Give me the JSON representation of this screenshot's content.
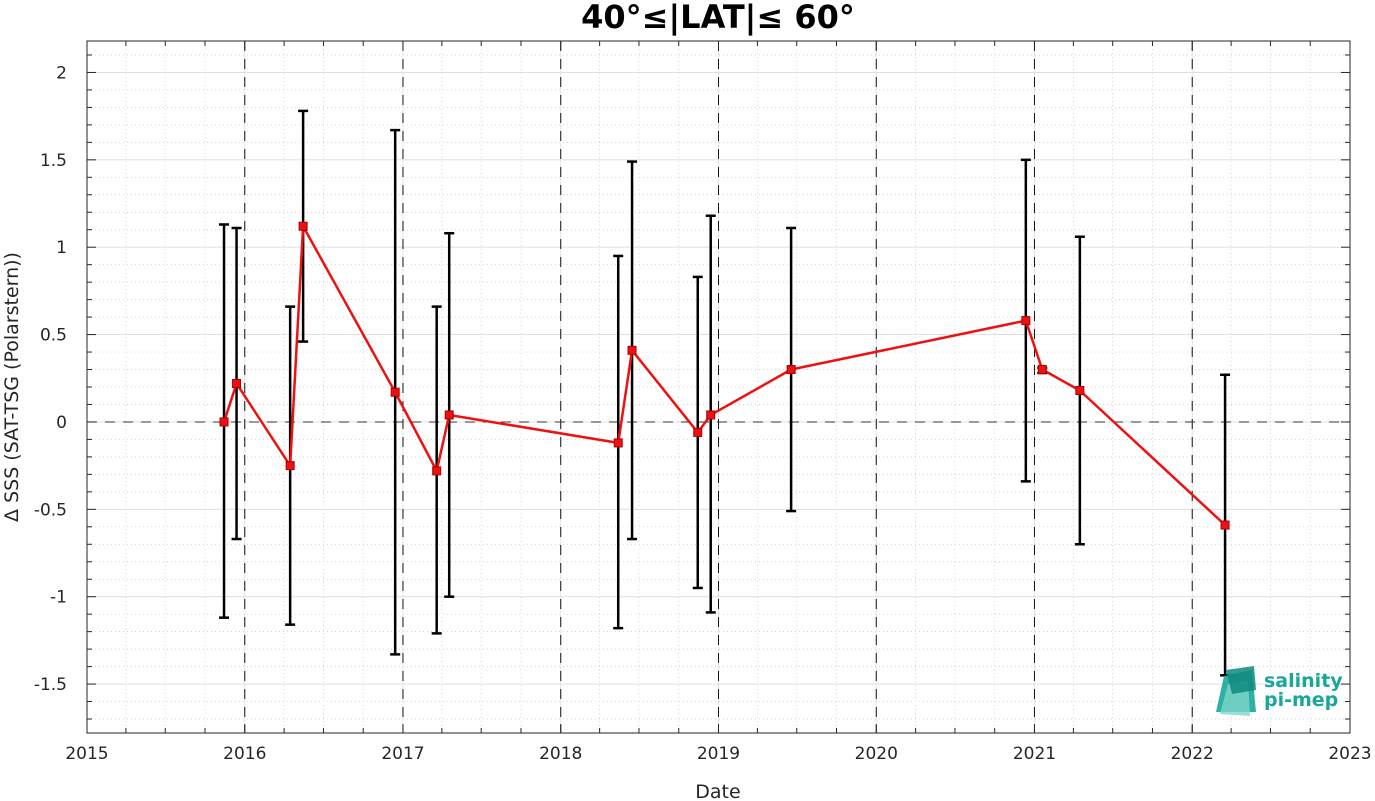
{
  "chart_data": {
    "type": "line",
    "title": "40°≤|LAT|≤ 60°",
    "xlabel": "Date",
    "ylabel": "Δ SSS (SAT-TSG (Polarstern))",
    "xlim": [
      "2015-01-01",
      "2023-01-01"
    ],
    "ylim": [
      -1.78,
      2.18
    ],
    "x_ticks": [
      "2015",
      "2016",
      "2017",
      "2018",
      "2019",
      "2020",
      "2021",
      "2022",
      "2023"
    ],
    "y_ticks": [
      "2",
      "1.5",
      "1",
      "0.5",
      "0",
      "-0.5",
      "-1",
      "-1.5"
    ],
    "y_tick_values": [
      2,
      1.5,
      1,
      0.5,
      0,
      -0.5,
      -1,
      -1.5
    ],
    "grid": true,
    "zero_line": true,
    "year_separators": true,
    "series": [
      {
        "color": "#ee1111",
        "marker": "square",
        "points": [
          {
            "x": "2015-11-14",
            "y": 0.0,
            "err_low": -1.12,
            "err_high": 1.13
          },
          {
            "x": "2015-12-13",
            "y": 0.22,
            "err_low": -0.67,
            "err_high": 1.11
          },
          {
            "x": "2016-04-15",
            "y": -0.25,
            "err_low": -1.16,
            "err_high": 0.66
          },
          {
            "x": "2016-05-15",
            "y": 1.12,
            "err_low": 0.46,
            "err_high": 1.78
          },
          {
            "x": "2016-12-14",
            "y": 0.17,
            "err_low": -1.33,
            "err_high": 1.67
          },
          {
            "x": "2017-03-20",
            "y": -0.28,
            "err_low": -1.21,
            "err_high": 0.66
          },
          {
            "x": "2017-04-18",
            "y": 0.04,
            "err_low": -1.0,
            "err_high": 1.08
          },
          {
            "x": "2018-05-14",
            "y": -0.12,
            "err_low": -1.18,
            "err_high": 0.95
          },
          {
            "x": "2018-06-15",
            "y": 0.41,
            "err_low": -0.67,
            "err_high": 1.49
          },
          {
            "x": "2018-11-14",
            "y": -0.06,
            "err_low": -0.95,
            "err_high": 0.83
          },
          {
            "x": "2018-12-14",
            "y": 0.04,
            "err_low": -1.09,
            "err_high": 1.18
          },
          {
            "x": "2019-06-18",
            "y": 0.3,
            "err_low": -0.51,
            "err_high": 1.11
          },
          {
            "x": "2020-12-12",
            "y": 0.58,
            "err_low": -0.34,
            "err_high": 1.5
          },
          {
            "x": "2021-01-19",
            "y": 0.3,
            "err_low": 0.28,
            "err_high": 0.31
          },
          {
            "x": "2021-04-16",
            "y": 0.18,
            "err_low": -0.7,
            "err_high": 1.06
          },
          {
            "x": "2022-03-18",
            "y": -0.59,
            "err_low": -1.45,
            "err_high": 0.27
          }
        ]
      }
    ]
  },
  "logo": {
    "line1": "salinity",
    "line2": "pi-mep",
    "color": "#1aa79a"
  }
}
